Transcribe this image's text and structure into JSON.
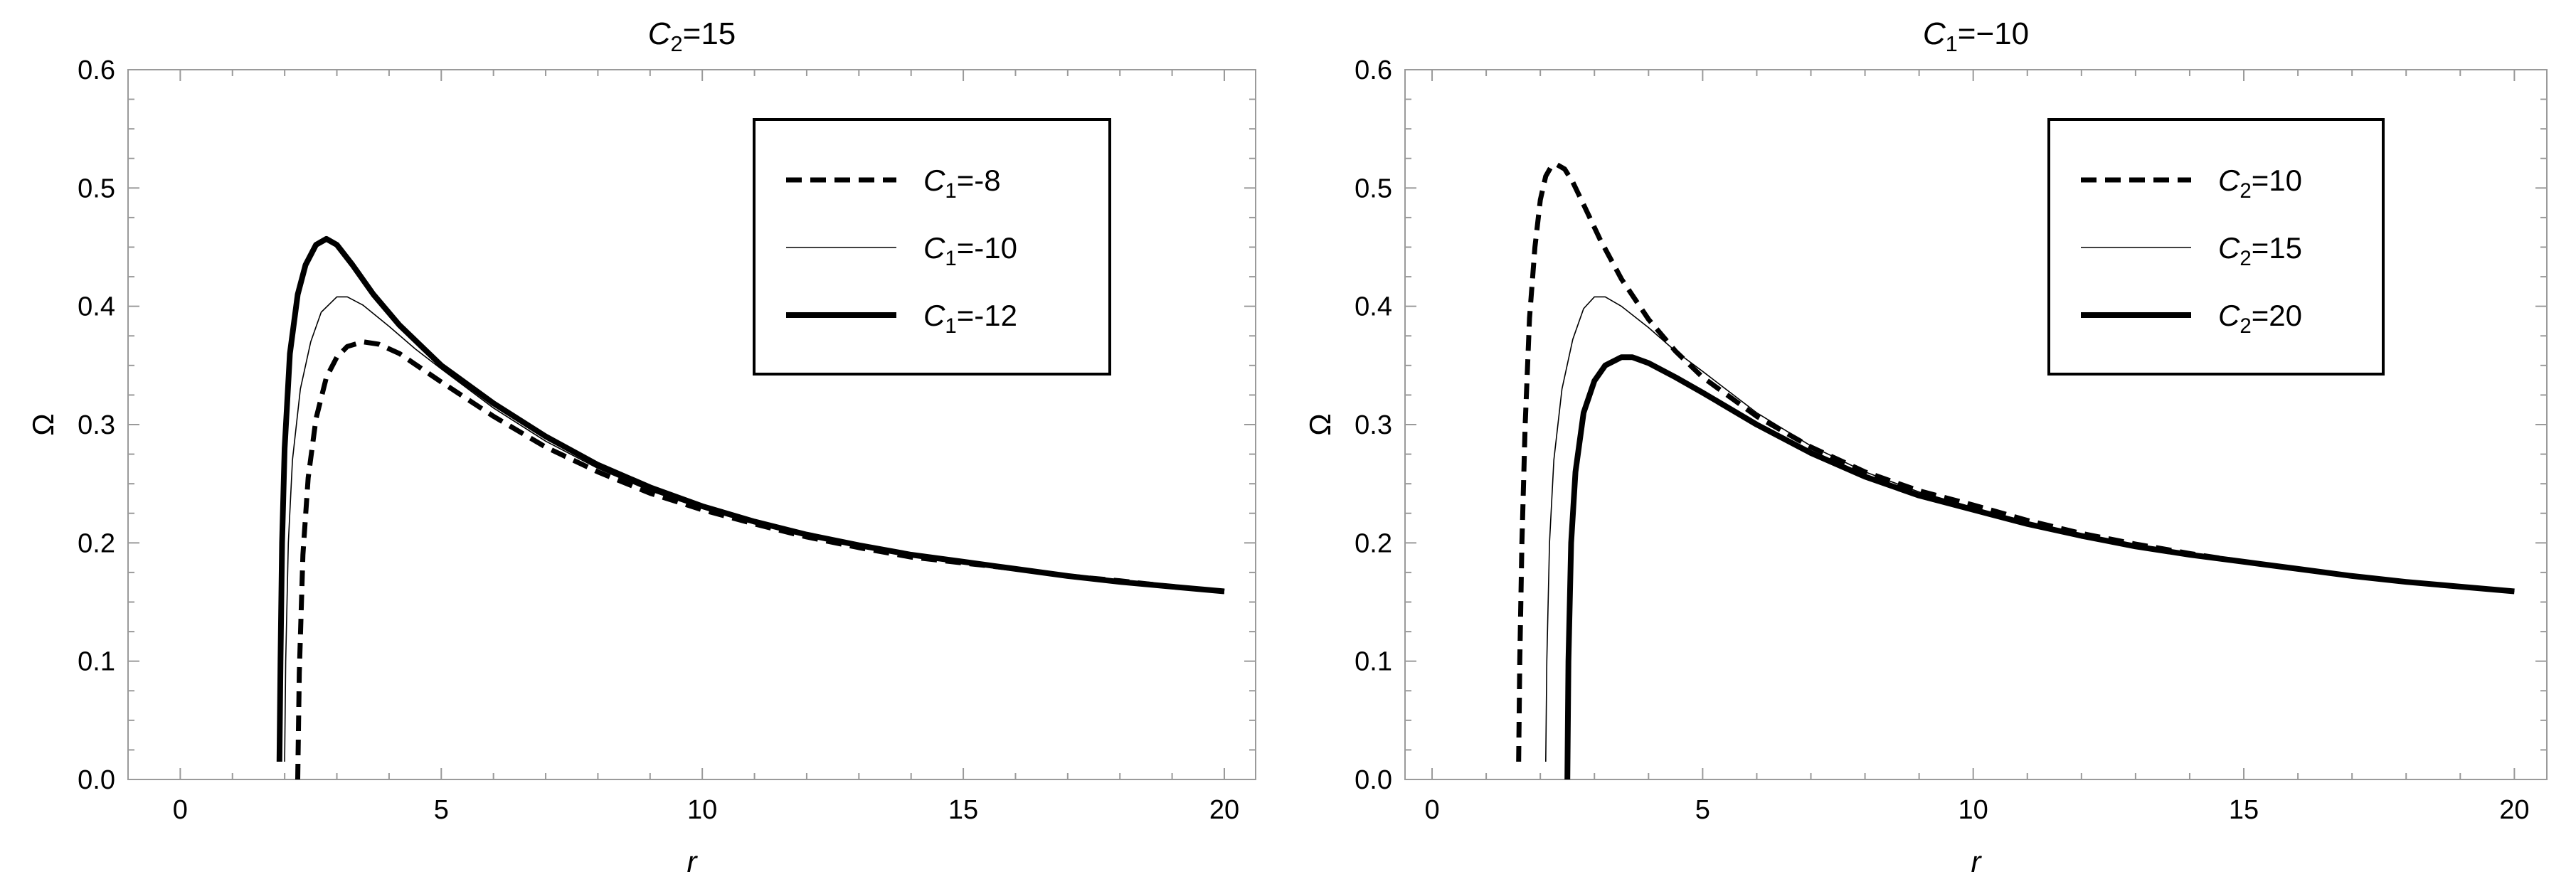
{
  "chart_data": [
    {
      "type": "line",
      "title": {
        "main": "C",
        "sub": "2",
        "rest": "=15"
      },
      "xlabel": "r",
      "ylabel": "Ω",
      "xlim": [
        -1,
        20.6
      ],
      "ylim": [
        0,
        0.6
      ],
      "xticks": [
        "0",
        "5",
        "10",
        "15",
        "20"
      ],
      "yticks": [
        "0.0",
        "0.1",
        "0.2",
        "0.3",
        "0.4",
        "0.5",
        "0.6"
      ],
      "grid": false,
      "legend_position": "top-right",
      "series": [
        {
          "name": {
            "main": "C",
            "sub": "1",
            "rest": "=-8"
          },
          "style": "dashed-thick",
          "x": [
            2.25,
            2.28,
            2.35,
            2.45,
            2.6,
            2.8,
            3.0,
            3.2,
            3.5,
            3.8,
            4.2,
            4.6,
            5,
            6,
            7,
            8,
            9,
            10,
            11,
            12,
            13,
            14,
            15,
            16,
            17,
            18,
            19,
            20
          ],
          "y": [
            0.0,
            0.09,
            0.19,
            0.255,
            0.305,
            0.34,
            0.357,
            0.366,
            0.37,
            0.368,
            0.36,
            0.348,
            0.336,
            0.307,
            0.281,
            0.26,
            0.242,
            0.228,
            0.216,
            0.205,
            0.196,
            0.188,
            0.183,
            0.178,
            0.172,
            0.168,
            0.163,
            0.159
          ]
        },
        {
          "name": {
            "main": "C",
            "sub": "1",
            "rest": "=-10"
          },
          "style": "thin",
          "x": [
            2.0,
            2.02,
            2.07,
            2.15,
            2.3,
            2.5,
            2.7,
            3.0,
            3.2,
            3.5,
            4,
            4.5,
            5,
            6,
            7,
            8,
            9,
            10,
            11,
            12,
            13,
            14,
            15,
            16,
            17,
            18,
            19,
            20
          ],
          "y": [
            0.015,
            0.1,
            0.2,
            0.27,
            0.33,
            0.37,
            0.395,
            0.408,
            0.408,
            0.401,
            0.383,
            0.364,
            0.347,
            0.314,
            0.286,
            0.263,
            0.244,
            0.229,
            0.216,
            0.206,
            0.197,
            0.19,
            0.183,
            0.177,
            0.172,
            0.167,
            0.163,
            0.159
          ]
        },
        {
          "name": {
            "main": "C",
            "sub": "1",
            "rest": "=-12"
          },
          "style": "solid-thick",
          "x": [
            1.9,
            1.92,
            1.95,
            2.0,
            2.1,
            2.25,
            2.4,
            2.6,
            2.8,
            3.0,
            3.3,
            3.7,
            4.2,
            5,
            6,
            7,
            8,
            9,
            10,
            11,
            12,
            13,
            14,
            15,
            16,
            17,
            18,
            19,
            20
          ],
          "y": [
            0.015,
            0.1,
            0.2,
            0.28,
            0.36,
            0.41,
            0.435,
            0.452,
            0.457,
            0.452,
            0.435,
            0.41,
            0.384,
            0.35,
            0.318,
            0.29,
            0.266,
            0.247,
            0.231,
            0.218,
            0.207,
            0.198,
            0.19,
            0.184,
            0.178,
            0.172,
            0.167,
            0.163,
            0.159
          ]
        }
      ]
    },
    {
      "type": "line",
      "title": {
        "main": "C",
        "sub": "1",
        "rest": "=−10"
      },
      "xlabel": "r",
      "ylabel": "Ω",
      "xlim": [
        -0.5,
        20.6
      ],
      "ylim": [
        0,
        0.6
      ],
      "xticks": [
        "0",
        "5",
        "10",
        "15",
        "20"
      ],
      "yticks": [
        "0.0",
        "0.1",
        "0.2",
        "0.3",
        "0.4",
        "0.5",
        "0.6"
      ],
      "grid": false,
      "legend_position": "top-right",
      "series": [
        {
          "name": {
            "main": "C",
            "sub": "2",
            "rest": "=10"
          },
          "style": "dashed-thick",
          "x": [
            1.6,
            1.62,
            1.66,
            1.72,
            1.8,
            1.9,
            2.0,
            2.1,
            2.2,
            2.3,
            2.45,
            2.6,
            2.8,
            3.1,
            3.5,
            4,
            4.5,
            5,
            6,
            7,
            8,
            9,
            10,
            11,
            12,
            13,
            14,
            15,
            16,
            17,
            18,
            19,
            20
          ],
          "y": [
            0.015,
            0.1,
            0.2,
            0.3,
            0.39,
            0.45,
            0.49,
            0.51,
            0.518,
            0.52,
            0.516,
            0.505,
            0.486,
            0.457,
            0.423,
            0.389,
            0.362,
            0.34,
            0.307,
            0.281,
            0.26,
            0.244,
            0.232,
            0.219,
            0.208,
            0.199,
            0.191,
            0.184,
            0.178,
            0.172,
            0.167,
            0.163,
            0.159
          ]
        },
        {
          "name": {
            "main": "C",
            "sub": "2",
            "rest": "=15"
          },
          "style": "thin",
          "x": [
            2.1,
            2.12,
            2.17,
            2.25,
            2.4,
            2.6,
            2.8,
            3.0,
            3.2,
            3.5,
            4,
            4.5,
            5,
            6,
            7,
            8,
            9,
            10,
            11,
            12,
            13,
            14,
            15,
            16,
            17,
            18,
            19,
            20
          ],
          "y": [
            0.015,
            0.1,
            0.2,
            0.27,
            0.33,
            0.372,
            0.398,
            0.408,
            0.408,
            0.4,
            0.382,
            0.362,
            0.345,
            0.31,
            0.282,
            0.26,
            0.243,
            0.23,
            0.217,
            0.206,
            0.198,
            0.19,
            0.184,
            0.178,
            0.172,
            0.167,
            0.163,
            0.159
          ]
        },
        {
          "name": {
            "main": "C",
            "sub": "2",
            "rest": "=20"
          },
          "style": "solid-thick",
          "x": [
            2.5,
            2.52,
            2.57,
            2.65,
            2.8,
            3.0,
            3.2,
            3.5,
            3.7,
            4.0,
            4.5,
            5,
            6,
            7,
            8,
            9,
            10,
            11,
            12,
            13,
            14,
            15,
            16,
            17,
            18,
            19,
            20
          ],
          "y": [
            0.0,
            0.1,
            0.2,
            0.26,
            0.31,
            0.337,
            0.35,
            0.357,
            0.357,
            0.352,
            0.34,
            0.327,
            0.3,
            0.276,
            0.256,
            0.24,
            0.228,
            0.216,
            0.206,
            0.197,
            0.19,
            0.184,
            0.178,
            0.172,
            0.167,
            0.163,
            0.159
          ]
        }
      ]
    }
  ]
}
